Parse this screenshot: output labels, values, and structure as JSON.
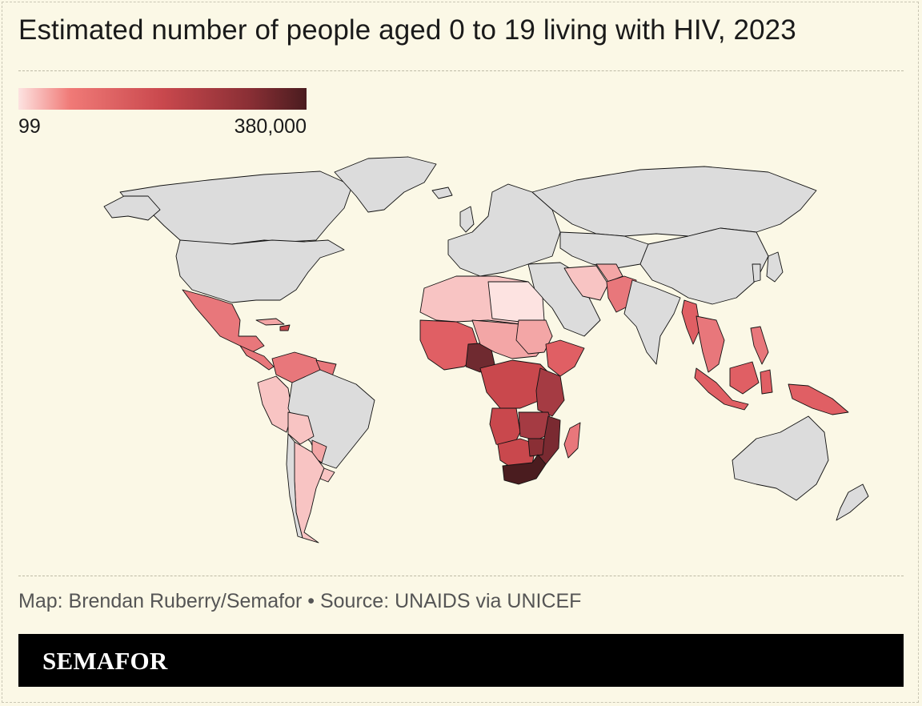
{
  "title": "Estimated number of people aged 0 to 19 living with HIV, 2023",
  "legend": {
    "min_label": "99",
    "max_label": "380,000",
    "min_value": 99,
    "max_value": 380000,
    "color_low": "#fde3e1",
    "color_high": "#4a1c1f",
    "no_data_color": "#dcdcdc"
  },
  "source": "Map: Brendan Ruberry/Semafor • Source: UNAIDS via UNICEF",
  "brand": "SEMAFOR",
  "colors": {
    "background": "#fbf8e6",
    "brand_bar": "#000000"
  }
}
